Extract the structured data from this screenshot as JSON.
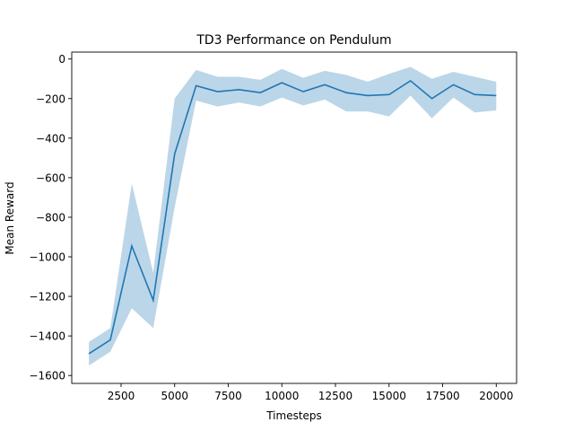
{
  "chart_data": {
    "type": "line",
    "title": "TD3 Performance on Pendulum",
    "xlabel": "Timesteps",
    "ylabel": "Mean Reward",
    "xlim": [
      200,
      20950
    ],
    "ylim": [
      -1640,
      35
    ],
    "xticks": [
      2500,
      5000,
      7500,
      10000,
      12500,
      15000,
      17500,
      20000
    ],
    "yticks": [
      0,
      -200,
      -400,
      -600,
      -800,
      -1000,
      -1200,
      -1400,
      -1600
    ],
    "xtick_labels": [
      "2500",
      "5000",
      "7500",
      "10000",
      "12500",
      "15000",
      "17500",
      "20000"
    ],
    "ytick_labels": [
      "0",
      "−200",
      "−400",
      "−600",
      "−800",
      "−1000",
      "−1200",
      "−1400",
      "−1600"
    ],
    "grid": false,
    "legend": false,
    "series": [
      {
        "x": [
          1000,
          2000,
          3000,
          4000,
          5000,
          6000,
          7000,
          8000,
          9000,
          10000,
          11000,
          12000,
          13000,
          14000,
          15000,
          16000,
          17000,
          18000,
          19000,
          20000
        ],
        "values": [
          -1490,
          -1420,
          -945,
          -1220,
          -480,
          -135,
          -165,
          -155,
          -170,
          -120,
          -165,
          -130,
          -170,
          -185,
          -180,
          -110,
          -200,
          -130,
          -180,
          -185
        ],
        "upper": [
          -1430,
          -1360,
          -630,
          -1080,
          -200,
          -55,
          -90,
          -90,
          -105,
          -50,
          -95,
          -60,
          -80,
          -115,
          -75,
          -40,
          -100,
          -65,
          -90,
          -115
        ],
        "lower": [
          -1550,
          -1480,
          -1260,
          -1360,
          -750,
          -210,
          -240,
          -220,
          -240,
          -195,
          -235,
          -205,
          -265,
          -265,
          -290,
          -185,
          -300,
          -195,
          -270,
          -260
        ],
        "color": "#1f77b4",
        "band_color": "#1f77b4",
        "band_opacity": 0.3
      }
    ]
  }
}
